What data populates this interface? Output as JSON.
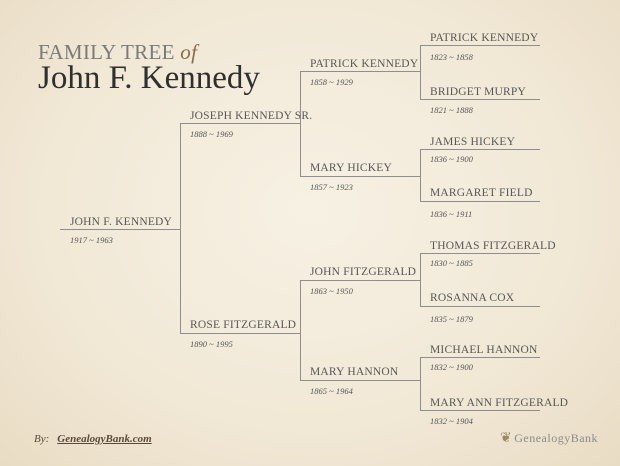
{
  "title": {
    "prefix": "FAMILY TREE",
    "of": "of",
    "name": "John F. Kennedy"
  },
  "subject": {
    "name": "JOHN F. KENNEDY",
    "dates": "1917 ~ 1963"
  },
  "parents": [
    {
      "name": "JOSEPH KENNEDY SR.",
      "dates": "1888 ~ 1969"
    },
    {
      "name": "ROSE FITZGERALD",
      "dates": "1890 ~ 1995"
    }
  ],
  "grandparents": [
    {
      "name": "PATRICK KENNEDY",
      "dates": "1858 ~ 1929"
    },
    {
      "name": "MARY HICKEY",
      "dates": "1857 ~ 1923"
    },
    {
      "name": "JOHN FITZGERALD",
      "dates": "1863 ~ 1950"
    },
    {
      "name": "MARY HANNON",
      "dates": "1865 ~ 1964"
    }
  ],
  "great_grandparents": [
    {
      "name": "PATRICK KENNEDY",
      "dates": "1823 ~ 1858"
    },
    {
      "name": "BRIDGET MURPY",
      "dates": "1821 ~ 1888"
    },
    {
      "name": "JAMES HICKEY",
      "dates": "1836 ~ 1900"
    },
    {
      "name": "MARGARET FIELD",
      "dates": "1836 ~ 1911"
    },
    {
      "name": "THOMAS FITZGERALD",
      "dates": "1830 ~ 1885"
    },
    {
      "name": "ROSANNA COX",
      "dates": "1835 ~ 1879"
    },
    {
      "name": "MICHAEL HANNON",
      "dates": "1832 ~ 1900"
    },
    {
      "name": "MARY ANN FITZGERALD",
      "dates": "1832 ~ 1904"
    }
  ],
  "footer": {
    "by": "By:",
    "site": "GenealogyBank.com",
    "logo": "GenealogyBank"
  }
}
